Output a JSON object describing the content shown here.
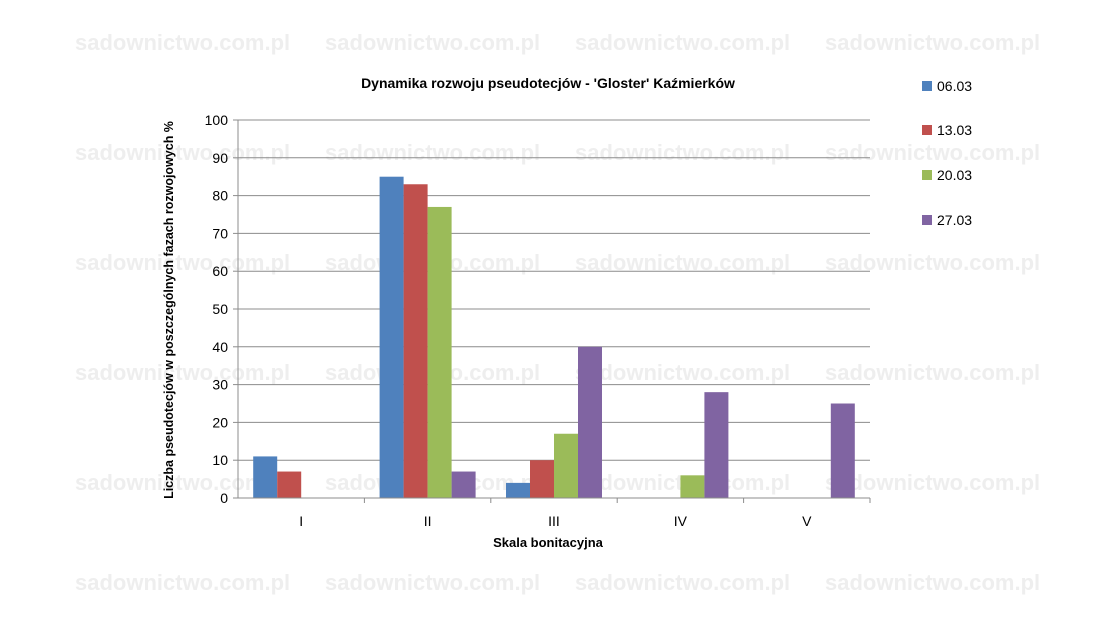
{
  "watermark": "sadownictwo.com.pl",
  "chart_data": {
    "type": "bar",
    "title": "Dynamika  rozwoju  pseudotecjów  - 'Gloster'  Kaźmierków",
    "xlabel": "Skala bonitacyjna",
    "ylabel": "Liczba pseudotecjów w poszczególnych fazach rozwojowych %",
    "categories": [
      "I",
      "II",
      "III",
      "IV",
      "V"
    ],
    "ylim": [
      0,
      100
    ],
    "yticks": [
      0,
      10,
      20,
      30,
      40,
      50,
      60,
      70,
      80,
      90,
      100
    ],
    "grid": true,
    "legend_position": "right",
    "series": [
      {
        "name": "06.03",
        "color": "#4f81bd",
        "values": [
          11,
          85,
          4,
          0,
          0
        ]
      },
      {
        "name": "13.03",
        "color": "#c0504d",
        "values": [
          7,
          83,
          10,
          0,
          0
        ]
      },
      {
        "name": "20.03",
        "color": "#9bbb59",
        "values": [
          0,
          77,
          17,
          6,
          0
        ]
      },
      {
        "name": "27.03",
        "color": "#8064a2",
        "values": [
          0,
          7,
          40,
          28,
          25
        ]
      }
    ]
  }
}
